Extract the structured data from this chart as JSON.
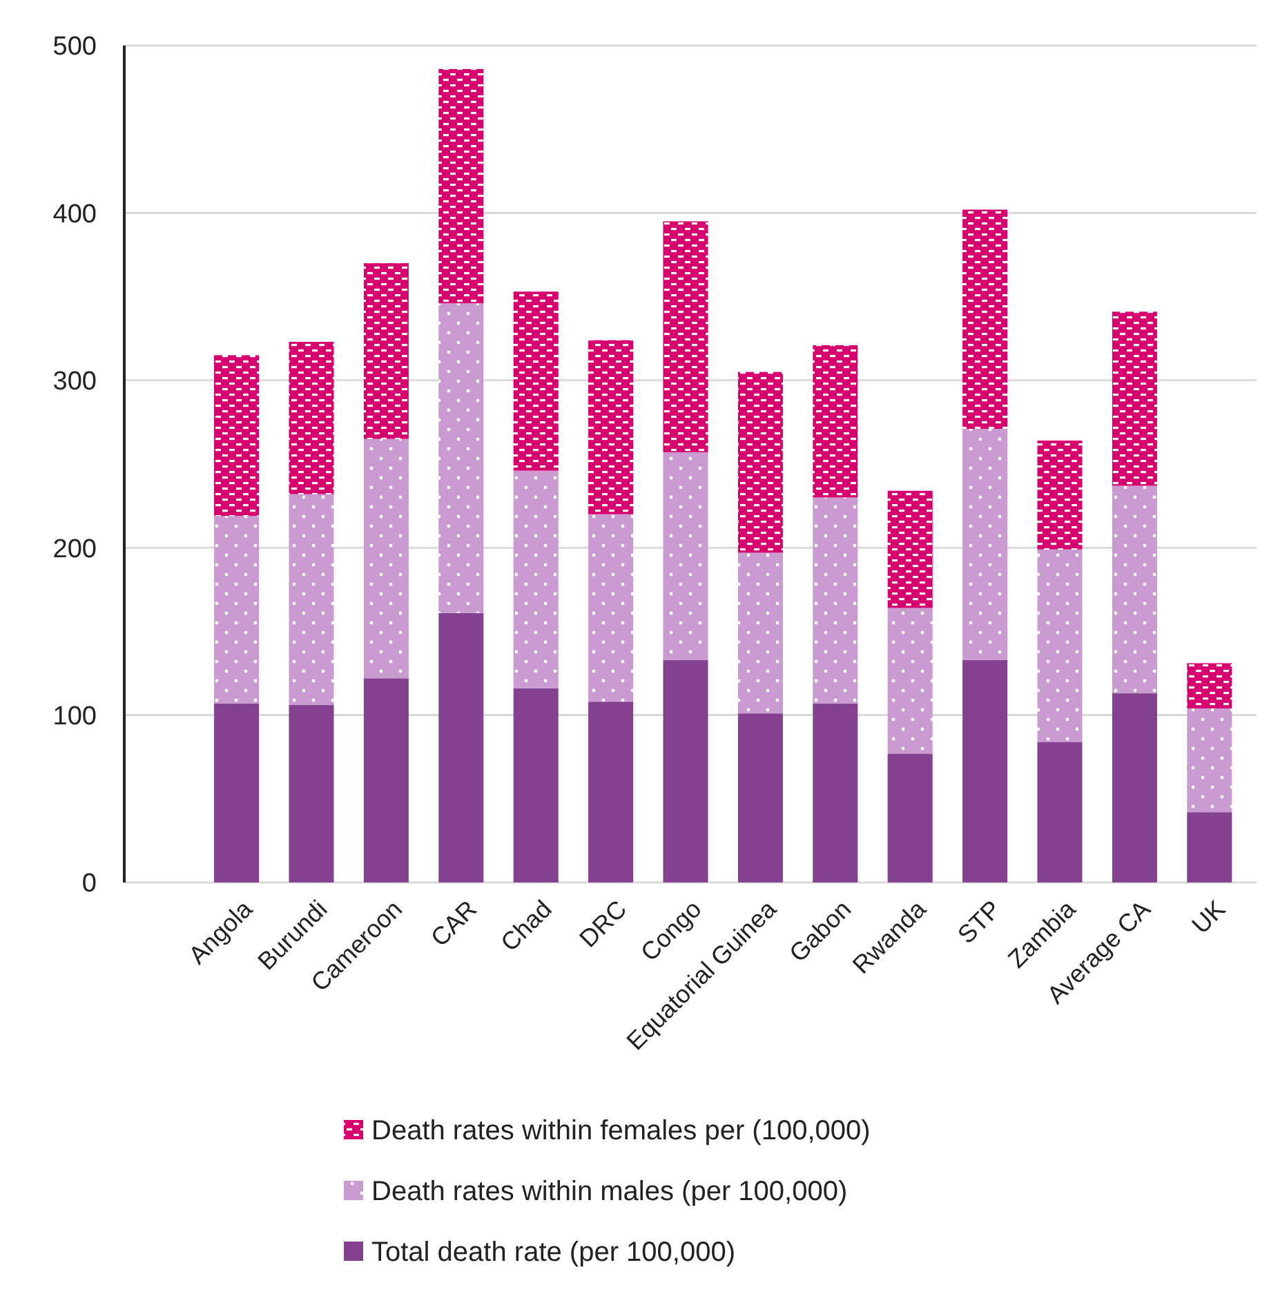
{
  "chart_data": {
    "type": "bar",
    "stacked": true,
    "categories": [
      null,
      "Angola",
      "Burundi",
      "Cameroon",
      "CAR",
      "Chad",
      "DRC",
      "Congo",
      "Equatorial Guinea",
      "Gabon",
      "Rwanda",
      "STP",
      "Zambia",
      "Average CA",
      "UK"
    ],
    "series": [
      {
        "name": "Total death rate (per 100,000)",
        "color": "#84418f",
        "values": [
          null,
          107,
          106,
          122,
          161,
          116,
          108,
          133,
          101,
          107,
          77,
          133,
          84,
          113,
          42
        ]
      },
      {
        "name": "Death rates within males (per 100,000)",
        "color": "#c99bd0",
        "values": [
          null,
          112,
          126,
          143,
          185,
          130,
          112,
          124,
          96,
          123,
          87,
          138,
          115,
          124,
          62
        ]
      },
      {
        "name": "Death rates within females per (100,000)",
        "color": "#d6006f",
        "values": [
          null,
          96,
          91,
          105,
          140,
          107,
          104,
          138,
          108,
          91,
          70,
          131,
          65,
          104,
          27
        ]
      }
    ],
    "ylim": [
      0,
      500
    ],
    "yticks": [
      0,
      100,
      200,
      300,
      400,
      500
    ],
    "grid": "y",
    "legend": "bottom"
  }
}
